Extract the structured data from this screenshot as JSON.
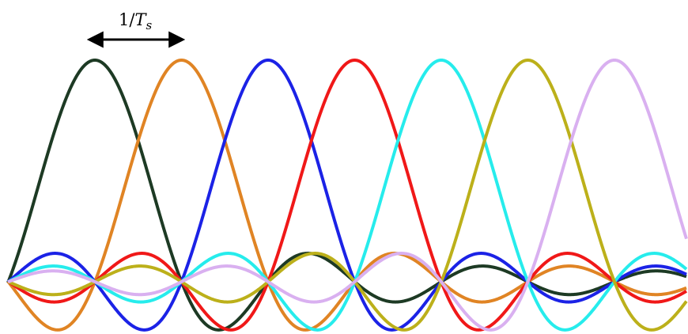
{
  "annotation": {
    "prefix": "1/",
    "symbol": "T",
    "subscript": "s"
  },
  "diagram": {
    "description_type": "sinc subcarrier spectrum",
    "pulse_count": 7,
    "spacing_label": "1/T_s",
    "pulses": [
      {
        "name": "pulse-1",
        "color": "#1d3a24"
      },
      {
        "name": "pulse-2",
        "color": "#e08424"
      },
      {
        "name": "pulse-3",
        "color": "#1b22e6"
      },
      {
        "name": "pulse-4",
        "color": "#f01818"
      },
      {
        "name": "pulse-5",
        "color": "#26ecec"
      },
      {
        "name": "pulse-6",
        "color": "#bcb01a"
      },
      {
        "name": "pulse-7",
        "color": "#d9b0f0"
      }
    ]
  }
}
